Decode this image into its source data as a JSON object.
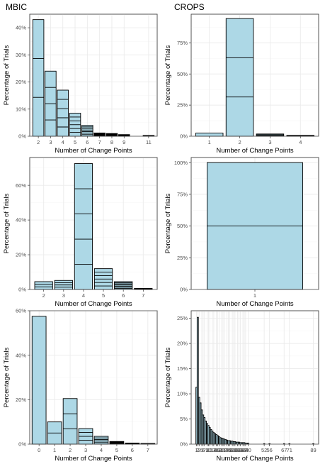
{
  "column_titles": {
    "left": "MBIC",
    "right": "CROPS"
  },
  "chart_data": [
    {
      "type": "bar",
      "xlabel": "Number of Change Points",
      "ylabel": "Percentage of Trials",
      "x": [
        2,
        3,
        4,
        5,
        6,
        7,
        8,
        9,
        11
      ],
      "values": [
        0.43,
        0.24,
        0.17,
        0.085,
        0.04,
        0.012,
        0.01,
        0.006,
        0.003
      ],
      "stack_counts": [
        3,
        4,
        5,
        6,
        7,
        8,
        9,
        9,
        11
      ],
      "xticks": [
        "2",
        "3",
        "4",
        "5",
        "6",
        "7",
        "8",
        "9",
        "11"
      ],
      "ylim": [
        0,
        0.45
      ],
      "yticks": [
        "0%",
        "10%",
        "20%",
        "30%",
        "40%"
      ]
    },
    {
      "type": "bar",
      "xlabel": "Number of Change Points",
      "ylabel": "Percentage of Trials",
      "x": [
        1,
        2,
        3,
        4
      ],
      "values": [
        0.025,
        0.945,
        0.018,
        0.007
      ],
      "stack_counts": [
        1,
        3,
        3,
        4
      ],
      "xticks": [
        "1",
        "2",
        "3",
        "4"
      ],
      "ylim": [
        0,
        0.98
      ],
      "yticks": [
        "0%",
        "25%",
        "50%",
        "75%"
      ]
    },
    {
      "type": "bar",
      "xlabel": "Number of Change Points",
      "ylabel": "Percentage of Trials",
      "x": [
        2,
        3,
        4,
        5,
        6,
        7
      ],
      "values": [
        0.045,
        0.052,
        0.725,
        0.12,
        0.045,
        0.006
      ],
      "stack_counts": [
        3,
        4,
        5,
        6,
        7,
        8
      ],
      "xticks": [
        "2",
        "3",
        "4",
        "5",
        "6",
        "7"
      ],
      "ylim": [
        0,
        0.76
      ],
      "yticks": [
        "0%",
        "20%",
        "40%",
        "60%"
      ]
    },
    {
      "type": "bar",
      "xlabel": "Number of Change Points",
      "ylabel": "Percentage of Trials",
      "x": [
        1
      ],
      "values": [
        1.0
      ],
      "stack_counts": [
        2
      ],
      "xticks": [
        "1"
      ],
      "ylim": [
        0,
        1.04
      ],
      "yticks": [
        "0%",
        "25%",
        "50%",
        "75%",
        "100%"
      ]
    },
    {
      "type": "bar",
      "xlabel": "Number of Change Points",
      "ylabel": "Percentage of Trials",
      "x": [
        0,
        1,
        2,
        3,
        4,
        5,
        6,
        7
      ],
      "values": [
        0.575,
        0.1,
        0.205,
        0.07,
        0.035,
        0.012,
        0.005,
        0.003
      ],
      "stack_counts": [
        1,
        2,
        3,
        4,
        5,
        6,
        7,
        8
      ],
      "xticks": [
        "0",
        "1",
        "2",
        "3",
        "4",
        "5",
        "6",
        "7"
      ],
      "ylim": [
        0,
        0.6
      ],
      "yticks": [
        "0%",
        "20%",
        "40%",
        "60%"
      ]
    },
    {
      "type": "bar",
      "xlabel": "Number of Change Points",
      "ylabel": "Percentage of Trials",
      "x": [
        1,
        2,
        3,
        4,
        5,
        6,
        7,
        8,
        9,
        10,
        11,
        12,
        13,
        14,
        15,
        16,
        17,
        18,
        19,
        20,
        21,
        22,
        23,
        24,
        25,
        26,
        27,
        28,
        29,
        30,
        31,
        32,
        33,
        34,
        35,
        36,
        37,
        38,
        39,
        40,
        52,
        56,
        67,
        71,
        89
      ],
      "values": [
        0.113,
        0.252,
        0.093,
        0.082,
        0.068,
        0.058,
        0.053,
        0.046,
        0.041,
        0.037,
        0.033,
        0.029,
        0.026,
        0.023,
        0.021,
        0.019,
        0.017,
        0.015,
        0.013,
        0.012,
        0.011,
        0.01,
        0.009,
        0.008,
        0.007,
        0.007,
        0.006,
        0.006,
        0.005,
        0.005,
        0.004,
        0.004,
        0.004,
        0.003,
        0.003,
        0.003,
        0.003,
        0.002,
        0.002,
        0.002,
        0.001,
        0.001,
        0.001,
        0.001,
        0.001
      ],
      "xticks": [
        "1",
        "2",
        "3",
        "5",
        "6",
        "7",
        "9",
        "10",
        "11",
        "13",
        "14",
        "16",
        "17",
        "18",
        "20",
        "21",
        "22",
        "24",
        "25",
        "26",
        "28",
        "29",
        "30",
        "32",
        "33",
        "34",
        "36",
        "37",
        "38",
        "40",
        "52",
        "56",
        "67",
        "71",
        "89"
      ],
      "xtick_values": [
        1,
        2,
        3,
        5,
        6,
        7,
        9,
        10,
        11,
        13,
        14,
        16,
        17,
        18,
        20,
        21,
        22,
        24,
        25,
        26,
        28,
        29,
        30,
        32,
        33,
        34,
        36,
        37,
        38,
        40,
        52,
        56,
        67,
        71,
        89
      ],
      "ylim": [
        0,
        0.265
      ],
      "yticks": [
        "0%",
        "5%",
        "10%",
        "15%",
        "20%",
        "25%"
      ]
    }
  ]
}
